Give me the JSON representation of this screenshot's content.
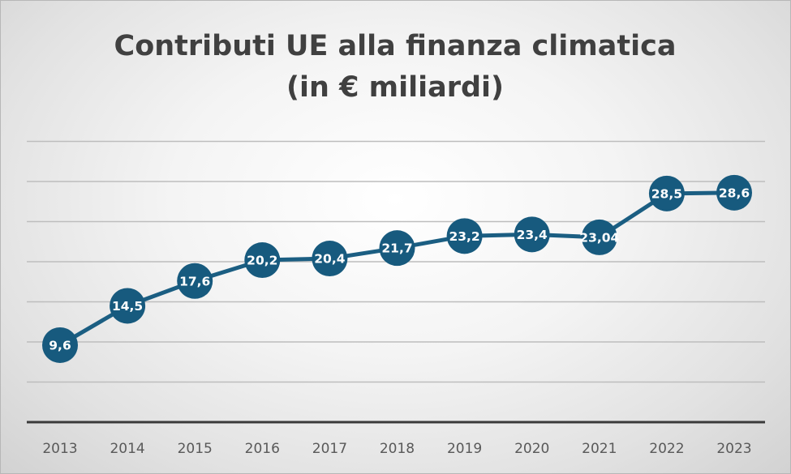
{
  "chart_data": {
    "type": "line",
    "title": "Contributi UE alla finanza climatica",
    "subtitle": "(in € miliardi)",
    "xlabel": "",
    "ylabel": "",
    "categories": [
      "2013",
      "2014",
      "2015",
      "2016",
      "2017",
      "2018",
      "2019",
      "2020",
      "2021",
      "2022",
      "2023"
    ],
    "series": [
      {
        "name": "Contributi UE",
        "values": [
          9.6,
          14.5,
          17.6,
          20.2,
          20.4,
          21.7,
          23.2,
          23.4,
          23.04,
          28.5,
          28.6
        ],
        "labels": [
          "9,6",
          "14,5",
          "17,6",
          "20,2",
          "20,4",
          "21,7",
          "23,2",
          "23,4",
          "23,04",
          "28,5",
          "28,6"
        ]
      }
    ],
    "ylim": [
      0,
      35
    ],
    "ytick_step": 5,
    "grid": true,
    "legend": "none",
    "colors": {
      "series": "#1b5e82",
      "marker": "#175a7e",
      "gridline": "#bdbdbd",
      "axis": "#3a3a3a",
      "title": "#404040",
      "tick": "#595959",
      "label": "#ffffff"
    }
  }
}
